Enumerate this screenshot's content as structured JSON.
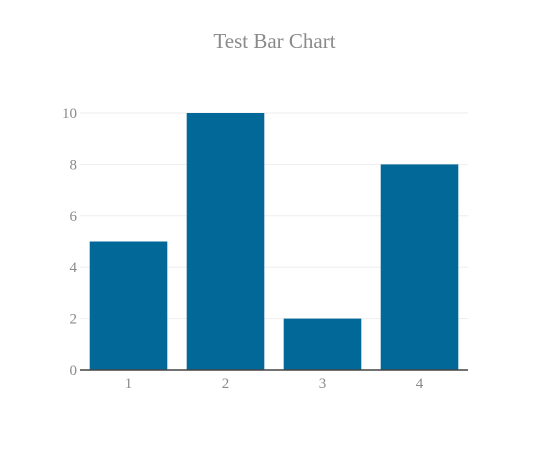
{
  "chart_data": {
    "type": "bar",
    "title": "Test Bar Chart",
    "xlabel": "",
    "ylabel": "",
    "categories": [
      "1",
      "2",
      "3",
      "4"
    ],
    "values": [
      5,
      10,
      2,
      8
    ],
    "ylim": [
      0,
      10
    ],
    "yticks": [
      "0",
      "2",
      "4",
      "6",
      "8",
      "10"
    ],
    "grid": true,
    "legend": "none",
    "colors": {
      "bar": "#026898",
      "grid": "#eeeeee",
      "axis": "#444444",
      "text": "#8a8a8a"
    }
  }
}
